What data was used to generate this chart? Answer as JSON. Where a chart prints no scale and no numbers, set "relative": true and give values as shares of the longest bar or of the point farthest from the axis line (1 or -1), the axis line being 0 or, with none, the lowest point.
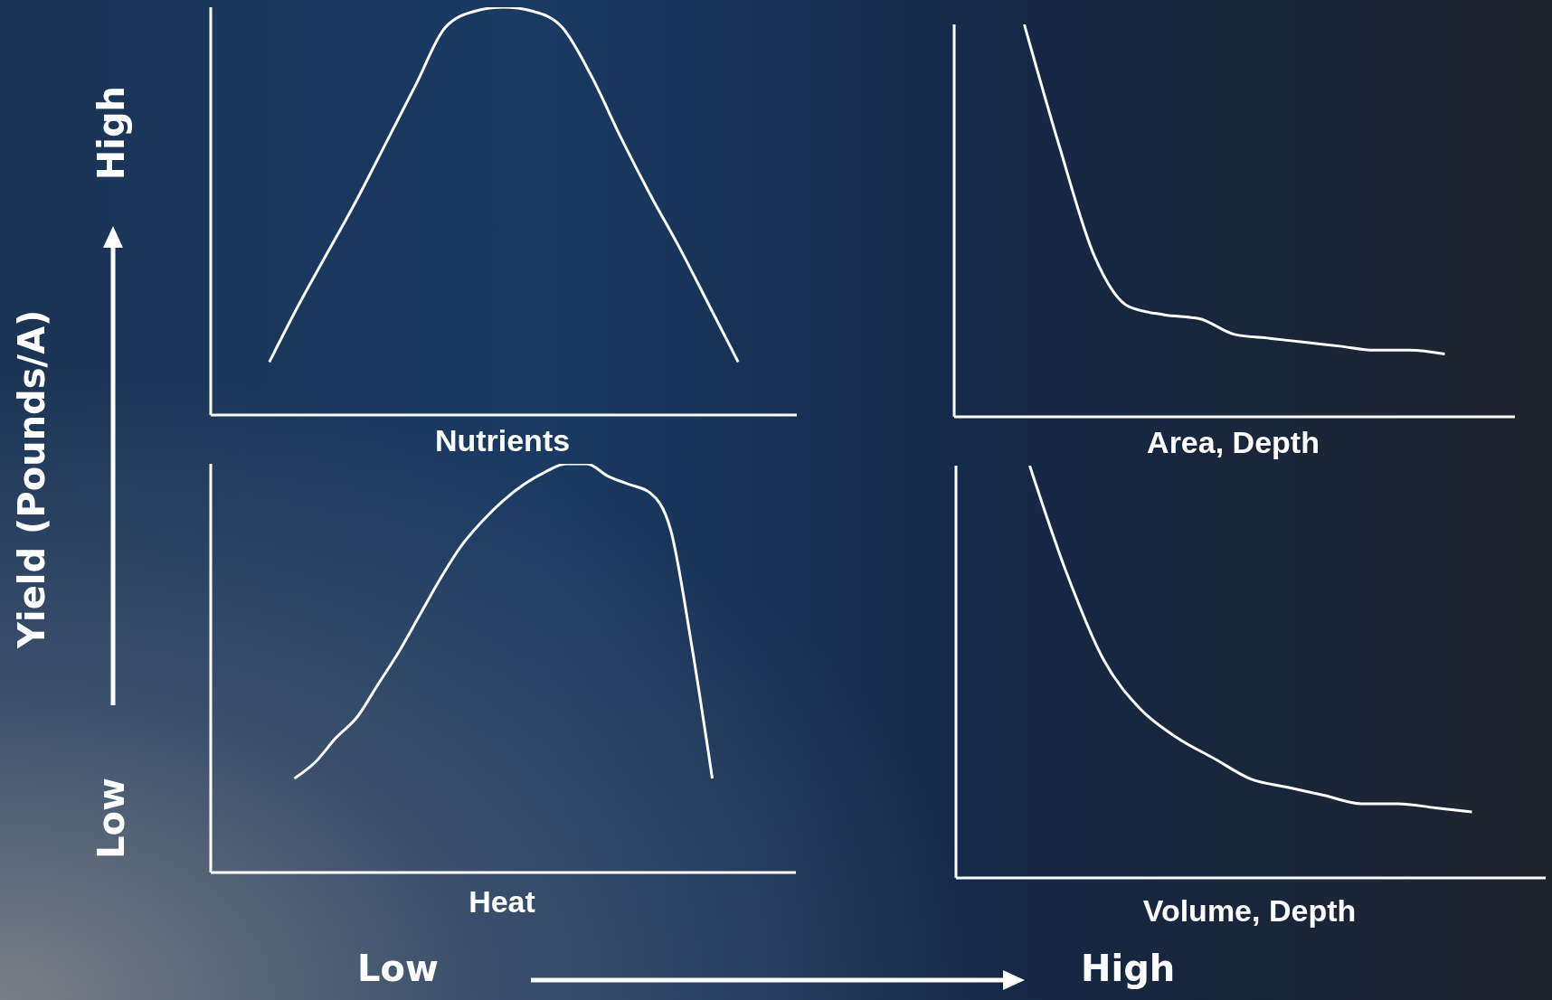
{
  "chart_data": [
    {
      "type": "line",
      "relative": true,
      "xlabel": "Nutrients",
      "ylabel": "Yield (Pounds/A)",
      "annotations": [
        "High",
        "Low",
        "Low",
        "High"
      ],
      "grid": false,
      "legend": false,
      "marker": "none",
      "line_style": "solid",
      "categories": [
        null,
        null,
        null,
        null,
        null,
        null,
        null,
        null,
        null,
        null,
        null,
        null,
        null,
        null,
        null,
        null,
        null,
        null,
        null,
        null,
        null
      ],
      "series": [
        {
          "color": "#ffffff",
          "values": [
            null,
            null,
            0.13,
            0.27,
            0.4,
            0.53,
            0.67,
            0.81,
            0.95,
            0.99,
            1,
            0.99,
            0.95,
            0.83,
            0.68,
            0.54,
            0.41,
            0.27,
            0.13,
            null,
            null
          ]
        }
      ]
    },
    {
      "type": "line",
      "relative": true,
      "xlabel": "Area, Depth",
      "grid": false,
      "legend": false,
      "marker": "none",
      "line_style": "solid",
      "categories": [
        null,
        null,
        null,
        null,
        null,
        null,
        null,
        null,
        null,
        null,
        null,
        null,
        null,
        null,
        null,
        null,
        null
      ],
      "series": [
        {
          "color": "#ffffff",
          "values": [
            null,
            null,
            1,
            0.69,
            0.41,
            0.28,
            0.26,
            0.25,
            0.21,
            0.2,
            0.19,
            0.18,
            0.17,
            0.17,
            0.16,
            null,
            null
          ]
        }
      ]
    },
    {
      "type": "line",
      "relative": true,
      "xlabel": "Heat",
      "grid": false,
      "legend": false,
      "marker": "none",
      "line_style": "solid",
      "categories": [
        null,
        null,
        null,
        null,
        null,
        null,
        null,
        null,
        null,
        null,
        null,
        null,
        null,
        null,
        null,
        null,
        null,
        null,
        null,
        null,
        null,
        null,
        null,
        null,
        null,
        null,
        null,
        null,
        null
      ],
      "series": [
        {
          "color": "#ffffff",
          "values": [
            null,
            null,
            null,
            null,
            0.23,
            0.27,
            0.33,
            0.38,
            0.46,
            0.54,
            0.63,
            0.72,
            0.8,
            0.86,
            0.91,
            0.95,
            0.98,
            1,
            1,
            0.97,
            0.95,
            0.93,
            0.84,
            0.56,
            0.23,
            null,
            null,
            null,
            null
          ]
        }
      ]
    },
    {
      "type": "line",
      "relative": true,
      "xlabel": "Volume, Depth",
      "grid": false,
      "legend": false,
      "marker": "none",
      "line_style": "solid",
      "categories": [
        null,
        null,
        null,
        null,
        null,
        null,
        null,
        null,
        null,
        null,
        null,
        null,
        null,
        null,
        null,
        null,
        null
      ],
      "series": [
        {
          "color": "#ffffff",
          "values": [
            null,
            null,
            1,
            0.74,
            0.53,
            0.41,
            0.34,
            0.29,
            0.24,
            0.22,
            0.2,
            0.18,
            0.18,
            0.17,
            0.16,
            null,
            null
          ]
        }
      ]
    }
  ]
}
